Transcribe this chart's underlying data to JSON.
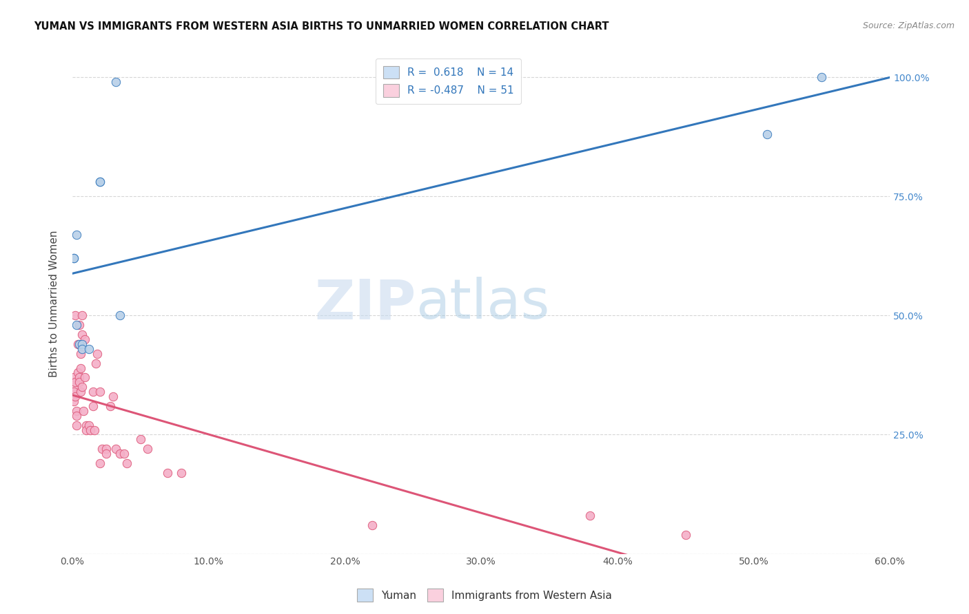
{
  "title": "YUMAN VS IMMIGRANTS FROM WESTERN ASIA BIRTHS TO UNMARRIED WOMEN CORRELATION CHART",
  "source": "Source: ZipAtlas.com",
  "ylabel": "Births to Unmarried Women",
  "watermark_zip": "ZIP",
  "watermark_atlas": "atlas",
  "legend_yuman": "Yuman",
  "legend_immigrants": "Immigrants from Western Asia",
  "R_yuman": "0.618",
  "N_yuman": "14",
  "R_immigrants": "-0.487",
  "N_immigrants": "51",
  "blue_scatter_color": "#b8d0e8",
  "pink_scatter_color": "#f4b0c8",
  "blue_line_color": "#3377bb",
  "pink_line_color": "#dd5577",
  "blue_legend_fill": "#cce0f5",
  "pink_legend_fill": "#fad0de",
  "yuman_x": [
    0.001,
    0.001,
    0.003,
    0.003,
    0.005,
    0.007,
    0.007,
    0.012,
    0.02,
    0.02,
    0.032,
    0.035,
    0.51,
    0.55
  ],
  "yuman_y": [
    0.62,
    0.62,
    0.67,
    0.48,
    0.44,
    0.44,
    0.43,
    0.43,
    0.78,
    0.78,
    0.99,
    0.5,
    0.88,
    1.0
  ],
  "immigrants_x": [
    0.001,
    0.001,
    0.001,
    0.001,
    0.002,
    0.002,
    0.002,
    0.003,
    0.003,
    0.003,
    0.004,
    0.004,
    0.005,
    0.005,
    0.005,
    0.006,
    0.006,
    0.006,
    0.007,
    0.007,
    0.007,
    0.008,
    0.009,
    0.009,
    0.01,
    0.01,
    0.012,
    0.013,
    0.015,
    0.015,
    0.016,
    0.017,
    0.018,
    0.02,
    0.02,
    0.022,
    0.025,
    0.025,
    0.028,
    0.03,
    0.032,
    0.035,
    0.038,
    0.04,
    0.05,
    0.055,
    0.07,
    0.08,
    0.22,
    0.38,
    0.45
  ],
  "immigrants_y": [
    0.37,
    0.35,
    0.34,
    0.32,
    0.5,
    0.36,
    0.33,
    0.3,
    0.29,
    0.27,
    0.44,
    0.38,
    0.48,
    0.37,
    0.36,
    0.42,
    0.39,
    0.34,
    0.5,
    0.46,
    0.35,
    0.3,
    0.45,
    0.37,
    0.27,
    0.26,
    0.27,
    0.26,
    0.34,
    0.31,
    0.26,
    0.4,
    0.42,
    0.19,
    0.34,
    0.22,
    0.22,
    0.21,
    0.31,
    0.33,
    0.22,
    0.21,
    0.21,
    0.19,
    0.24,
    0.22,
    0.17,
    0.17,
    0.06,
    0.08,
    0.04
  ],
  "xmin": 0.0,
  "xmax": 0.6,
  "ymin": 0.0,
  "ymax": 1.05,
  "x_ticks": [
    0.0,
    0.1,
    0.2,
    0.3,
    0.4,
    0.5,
    0.6
  ],
  "y_ticks": [
    0.0,
    0.25,
    0.5,
    0.75,
    1.0
  ],
  "marker_size": 80
}
